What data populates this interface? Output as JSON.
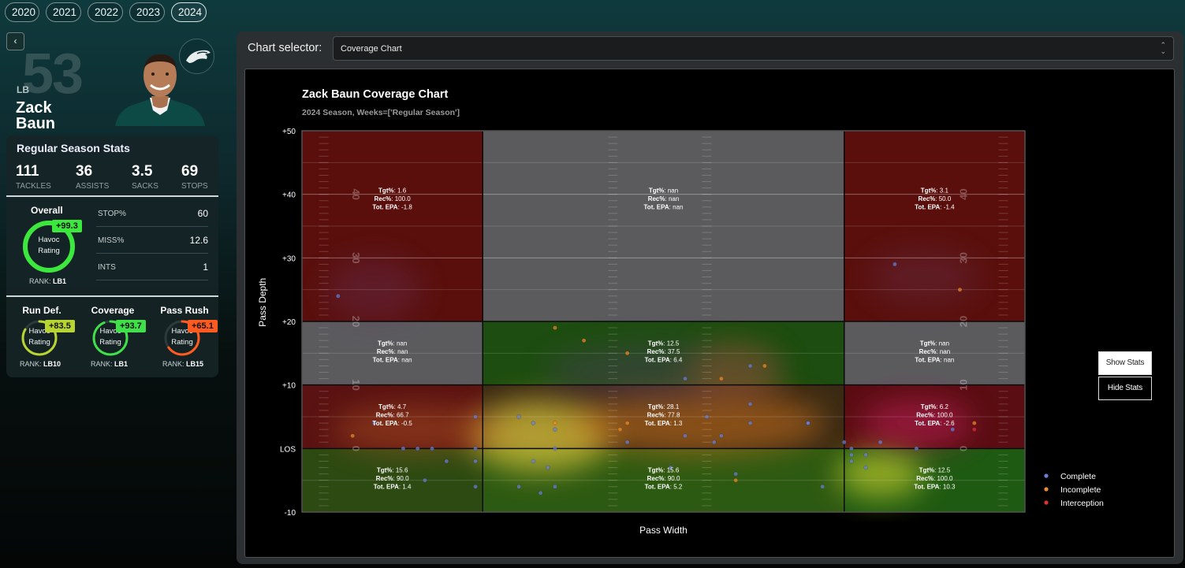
{
  "years": [
    "2020",
    "2021",
    "2022",
    "2023",
    "2024"
  ],
  "active_year": "2024",
  "player": {
    "jersey": "53",
    "position": "LB",
    "first_name": "Zack",
    "last_name": "Baun",
    "team_logo": "eagle-logo"
  },
  "season_stats": {
    "title": "Regular Season Stats",
    "tackles": "111",
    "tackles_label": "TACKLES",
    "assists": "36",
    "assists_label": "ASSISTS",
    "sacks": "3.5",
    "sacks_label": "SACKS",
    "stops": "69",
    "stops_label": "STOPS"
  },
  "overall": {
    "label": "Overall",
    "badge": "+99.3",
    "ring_line1": "Havoc",
    "ring_line2": "Rating",
    "rank_label": "RANK:",
    "rank": "LB1",
    "level": 0.993
  },
  "mini_stats": [
    {
      "key": "STOP%",
      "value": "60"
    },
    {
      "key": "MISS%",
      "value": "12.6"
    },
    {
      "key": "INTS",
      "value": "1"
    }
  ],
  "sub_ratings": [
    {
      "title": "Run Def.",
      "badge": "+83.5",
      "rank": "LB10",
      "color": "#b8d432",
      "level": 0.835
    },
    {
      "title": "Coverage",
      "badge": "+93.7",
      "rank": "LB1",
      "color": "#3fe04a",
      "level": 0.937
    },
    {
      "title": "Pass Rush",
      "badge": "+65.1",
      "rank": "LB15",
      "color": "#ff5a1f",
      "level": 0.651
    }
  ],
  "sub_ring_line1": "Havoc",
  "sub_ring_line2": "Rating",
  "rank_label": "RANK:",
  "chart_selector": {
    "label": "Chart selector:",
    "value": "Coverage Chart"
  },
  "buttons": {
    "show": "Show Stats",
    "hide": "Hide Stats"
  },
  "chart_data": {
    "type": "scatter",
    "title": "Zack Baun Coverage Chart",
    "subtitle": "2024 Season, Weeks=['Regular Season']",
    "xlabel": "Pass Width",
    "ylabel": "Pass Depth",
    "ylim": [
      -10,
      50
    ],
    "ytick_labels": [
      "+50",
      "+40",
      "+30",
      "+20",
      "+10",
      "LOS",
      "-10"
    ],
    "ytick_values": [
      50,
      40,
      30,
      20,
      10,
      0,
      -10
    ],
    "field_numbers": [
      "40",
      "30",
      "20",
      "10",
      "0"
    ],
    "legend": [
      {
        "label": "Complete",
        "color": "#6a7fd6"
      },
      {
        "label": "Incomplete",
        "color": "#f08a2a"
      },
      {
        "label": "Interception",
        "color": "#e03030"
      }
    ],
    "zone_columns": [
      0,
      0.25,
      0.75,
      1
    ],
    "zone_rows": [
      50,
      20,
      10,
      0,
      -10
    ],
    "zones": [
      {
        "row": 0,
        "col": 0,
        "fill": "#5a0f0c",
        "tgt": "1.6",
        "rec": "100.0",
        "epa": "-1.8"
      },
      {
        "row": 0,
        "col": 1,
        "fill": "#5b5b5e",
        "tgt": "nan",
        "rec": "nan",
        "epa": "nan"
      },
      {
        "row": 0,
        "col": 2,
        "fill": "#5a0f0c",
        "tgt": "3.1",
        "rec": "50.0",
        "epa": "-1.4"
      },
      {
        "row": 1,
        "col": 0,
        "fill": "#5b5b5e",
        "tgt": "nan",
        "rec": "nan",
        "epa": "nan"
      },
      {
        "row": 1,
        "col": 1,
        "fill": "#1d4d10",
        "tgt": "12.5",
        "rec": "37.5",
        "epa": "6.4"
      },
      {
        "row": 1,
        "col": 2,
        "fill": "#5b5b5e",
        "tgt": "nan",
        "rec": "nan",
        "epa": "nan"
      },
      {
        "row": 2,
        "col": 0,
        "fill": "#5a1212",
        "tgt": "4.7",
        "rec": "66.7",
        "epa": "-0.5"
      },
      {
        "row": 2,
        "col": 1,
        "fill": "#3a2a14",
        "tgt": "28.1",
        "rec": "77.8",
        "epa": "1.3"
      },
      {
        "row": 2,
        "col": 2,
        "fill": "#5a0d12",
        "tgt": "6.2",
        "rec": "100.0",
        "epa": "-2.6"
      },
      {
        "row": 3,
        "col": 0,
        "fill": "#2c4a12",
        "tgt": "15.6",
        "rec": "90.0",
        "epa": "1.4"
      },
      {
        "row": 3,
        "col": 1,
        "fill": "#2d5a12",
        "tgt": "15.6",
        "rec": "90.0",
        "epa": "5.2"
      },
      {
        "row": 3,
        "col": 2,
        "fill": "#1f5a12",
        "tgt": "12.5",
        "rec": "100.0",
        "epa": "10.3"
      }
    ],
    "zone_labels": {
      "tgt": "Tgt%",
      "rec": "Rec%",
      "epa": "Tot. EPA"
    },
    "points": [
      {
        "x": 0.05,
        "y": 24,
        "type": "Complete"
      },
      {
        "x": 0.82,
        "y": 29,
        "type": "Complete"
      },
      {
        "x": 0.91,
        "y": 25,
        "type": "Incomplete"
      },
      {
        "x": 0.35,
        "y": 19,
        "type": "Incomplete"
      },
      {
        "x": 0.39,
        "y": 17,
        "type": "Incomplete"
      },
      {
        "x": 0.45,
        "y": 15,
        "type": "Incomplete"
      },
      {
        "x": 0.53,
        "y": 11,
        "type": "Complete"
      },
      {
        "x": 0.58,
        "y": 11,
        "type": "Incomplete"
      },
      {
        "x": 0.62,
        "y": 13,
        "type": "Complete"
      },
      {
        "x": 0.64,
        "y": 13,
        "type": "Incomplete"
      },
      {
        "x": 0.62,
        "y": 7,
        "type": "Complete"
      },
      {
        "x": 0.56,
        "y": 5,
        "type": "Complete"
      },
      {
        "x": 0.62,
        "y": 4,
        "type": "Complete"
      },
      {
        "x": 0.7,
        "y": 4,
        "type": "Complete"
      },
      {
        "x": 0.45,
        "y": 4,
        "type": "Incomplete"
      },
      {
        "x": 0.44,
        "y": 3,
        "type": "Incomplete"
      },
      {
        "x": 0.45,
        "y": 1,
        "type": "Complete"
      },
      {
        "x": 0.53,
        "y": 2,
        "type": "Complete"
      },
      {
        "x": 0.58,
        "y": 2,
        "type": "Complete"
      },
      {
        "x": 0.57,
        "y": 1,
        "type": "Complete"
      },
      {
        "x": 0.07,
        "y": 2,
        "type": "Incomplete"
      },
      {
        "x": 0.1,
        "y": 4,
        "type": "Complete"
      },
      {
        "x": 0.14,
        "y": 0,
        "type": "Complete"
      },
      {
        "x": 0.16,
        "y": 0,
        "type": "Complete"
      },
      {
        "x": 0.18,
        "y": 0,
        "type": "Complete"
      },
      {
        "x": 0.2,
        "y": -2,
        "type": "Complete"
      },
      {
        "x": 0.24,
        "y": 0,
        "type": "Complete"
      },
      {
        "x": 0.24,
        "y": -2,
        "type": "Complete"
      },
      {
        "x": 0.24,
        "y": 5,
        "type": "Complete"
      },
      {
        "x": 0.3,
        "y": 5,
        "type": "Complete"
      },
      {
        "x": 0.32,
        "y": 4,
        "type": "Complete"
      },
      {
        "x": 0.35,
        "y": 4,
        "type": "Incomplete"
      },
      {
        "x": 0.35,
        "y": 3,
        "type": "Complete"
      },
      {
        "x": 0.35,
        "y": 0,
        "type": "Complete"
      },
      {
        "x": 0.32,
        "y": -2,
        "type": "Complete"
      },
      {
        "x": 0.34,
        "y": -3,
        "type": "Complete"
      },
      {
        "x": 0.3,
        "y": -6,
        "type": "Complete"
      },
      {
        "x": 0.33,
        "y": -7,
        "type": "Complete"
      },
      {
        "x": 0.35,
        "y": -6,
        "type": "Complete"
      },
      {
        "x": 0.17,
        "y": -5,
        "type": "Complete"
      },
      {
        "x": 0.24,
        "y": -6,
        "type": "Complete"
      },
      {
        "x": 0.51,
        "y": -3,
        "type": "Complete"
      },
      {
        "x": 0.6,
        "y": -4,
        "type": "Complete"
      },
      {
        "x": 0.6,
        "y": -5,
        "type": "Incomplete"
      },
      {
        "x": 0.72,
        "y": -6,
        "type": "Complete"
      },
      {
        "x": 0.75,
        "y": 1,
        "type": "Complete"
      },
      {
        "x": 0.76,
        "y": 0,
        "type": "Complete"
      },
      {
        "x": 0.76,
        "y": -1,
        "type": "Complete"
      },
      {
        "x": 0.76,
        "y": -2,
        "type": "Complete"
      },
      {
        "x": 0.78,
        "y": -1,
        "type": "Complete"
      },
      {
        "x": 0.78,
        "y": -3,
        "type": "Complete"
      },
      {
        "x": 0.85,
        "y": 0,
        "type": "Complete"
      },
      {
        "x": 0.9,
        "y": 3,
        "type": "Complete"
      },
      {
        "x": 0.93,
        "y": 3,
        "type": "Interception"
      },
      {
        "x": 0.93,
        "y": 4,
        "type": "Incomplete"
      },
      {
        "x": 0.7,
        "y": 4,
        "type": "Complete"
      },
      {
        "x": 0.8,
        "y": 1,
        "type": "Complete"
      }
    ]
  }
}
